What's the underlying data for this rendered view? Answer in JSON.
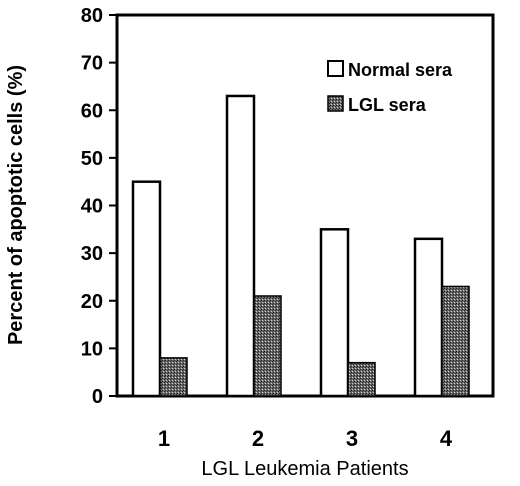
{
  "chart_data": {
    "type": "bar",
    "categories": [
      "1",
      "2",
      "3",
      "4"
    ],
    "series": [
      {
        "name": "Normal sera",
        "values": [
          45,
          63,
          35,
          33
        ],
        "color": "#ffffff"
      },
      {
        "name": "LGL sera",
        "values": [
          8,
          21,
          7,
          23
        ],
        "color": "#555555"
      }
    ],
    "xlabel": "LGL Leukemia Patients",
    "ylabel": "Percent of apoptotic cells (%)",
    "ylim": [
      0,
      80
    ],
    "yticks": [
      "0",
      "10",
      "20",
      "30",
      "40",
      "50",
      "60",
      "70",
      "80"
    ],
    "grid": false,
    "legend_position": "top-right"
  }
}
